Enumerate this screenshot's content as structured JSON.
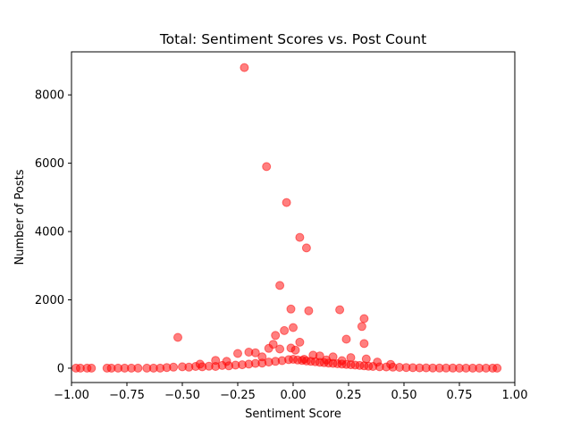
{
  "chart_data": {
    "type": "scatter",
    "title": "Total: Sentiment Scores vs. Post Count",
    "xlabel": "Sentiment Score",
    "ylabel": "Number of Posts",
    "xlim": [
      -1.0,
      1.0
    ],
    "ylim": [
      -420,
      9260
    ],
    "xticks": [
      -1.0,
      -0.75,
      -0.5,
      -0.25,
      0.0,
      0.25,
      0.5,
      0.75,
      1.0
    ],
    "xtick_labels": [
      "−1.00",
      "−0.75",
      "−0.50",
      "−0.25",
      "0.00",
      "0.25",
      "0.50",
      "0.75",
      "1.00"
    ],
    "yticks": [
      0,
      2000,
      4000,
      6000,
      8000
    ],
    "ytick_labels": [
      "0",
      "2000",
      "4000",
      "6000",
      "8000"
    ],
    "grid": false,
    "marker_color": "#ff0000",
    "marker_alpha": 0.5,
    "points": [
      [
        -0.22,
        8800
      ],
      [
        -0.12,
        5900
      ],
      [
        -0.03,
        4850
      ],
      [
        0.03,
        3830
      ],
      [
        0.06,
        3520
      ],
      [
        -0.06,
        2420
      ],
      [
        -0.01,
        1730
      ],
      [
        0.07,
        1680
      ],
      [
        0.21,
        1710
      ],
      [
        0.32,
        1450
      ],
      [
        0.31,
        1220
      ],
      [
        -0.52,
        900
      ],
      [
        -0.08,
        960
      ],
      [
        0.0,
        1190
      ],
      [
        -0.04,
        1100
      ],
      [
        0.24,
        850
      ],
      [
        0.32,
        720
      ],
      [
        -0.09,
        700
      ],
      [
        0.03,
        760
      ],
      [
        -0.11,
        580
      ],
      [
        -0.06,
        560
      ],
      [
        -0.01,
        590
      ],
      [
        0.01,
        530
      ],
      [
        -0.17,
        450
      ],
      [
        -0.2,
        470
      ],
      [
        -0.25,
        430
      ],
      [
        -0.14,
        330
      ],
      [
        0.09,
        380
      ],
      [
        0.12,
        360
      ],
      [
        0.18,
        330
      ],
      [
        0.26,
        310
      ],
      [
        0.33,
        270
      ],
      [
        -0.35,
        230
      ],
      [
        -0.3,
        200
      ],
      [
        0.05,
        260
      ],
      [
        0.15,
        240
      ],
      [
        0.22,
        220
      ],
      [
        0.38,
        180
      ],
      [
        -0.42,
        120
      ],
      [
        0.44,
        110
      ],
      [
        -0.98,
        0
      ],
      [
        -0.96,
        0
      ],
      [
        -0.93,
        0
      ],
      [
        -0.91,
        0
      ],
      [
        -0.84,
        0
      ],
      [
        -0.82,
        0
      ],
      [
        -0.79,
        0
      ],
      [
        -0.76,
        0
      ],
      [
        -0.73,
        0
      ],
      [
        -0.7,
        0
      ],
      [
        -0.66,
        0
      ],
      [
        -0.63,
        0
      ],
      [
        -0.6,
        0
      ],
      [
        -0.57,
        20
      ],
      [
        -0.54,
        30
      ],
      [
        -0.5,
        40
      ],
      [
        -0.47,
        30
      ],
      [
        -0.44,
        50
      ],
      [
        -0.41,
        40
      ],
      [
        -0.38,
        60
      ],
      [
        -0.35,
        50
      ],
      [
        -0.32,
        80
      ],
      [
        -0.29,
        70
      ],
      [
        -0.26,
        90
      ],
      [
        -0.23,
        100
      ],
      [
        -0.2,
        120
      ],
      [
        -0.17,
        140
      ],
      [
        -0.14,
        150
      ],
      [
        -0.11,
        180
      ],
      [
        -0.08,
        200
      ],
      [
        -0.05,
        220
      ],
      [
        -0.02,
        250
      ],
      [
        0.0,
        260
      ],
      [
        0.02,
        240
      ],
      [
        0.04,
        230
      ],
      [
        0.06,
        210
      ],
      [
        0.08,
        200
      ],
      [
        0.1,
        190
      ],
      [
        0.12,
        170
      ],
      [
        0.14,
        160
      ],
      [
        0.16,
        150
      ],
      [
        0.18,
        140
      ],
      [
        0.2,
        130
      ],
      [
        0.22,
        120
      ],
      [
        0.24,
        110
      ],
      [
        0.26,
        100
      ],
      [
        0.28,
        90
      ],
      [
        0.3,
        80
      ],
      [
        0.32,
        70
      ],
      [
        0.34,
        60
      ],
      [
        0.36,
        50
      ],
      [
        0.39,
        40
      ],
      [
        0.42,
        35
      ],
      [
        0.45,
        30
      ],
      [
        0.48,
        25
      ],
      [
        0.51,
        20
      ],
      [
        0.54,
        15
      ],
      [
        0.57,
        10
      ],
      [
        0.6,
        8
      ],
      [
        0.63,
        6
      ],
      [
        0.66,
        5
      ],
      [
        0.69,
        4
      ],
      [
        0.72,
        3
      ],
      [
        0.75,
        2
      ],
      [
        0.78,
        2
      ],
      [
        0.81,
        1
      ],
      [
        0.84,
        1
      ],
      [
        0.87,
        1
      ],
      [
        0.9,
        0
      ],
      [
        0.92,
        0
      ]
    ]
  }
}
